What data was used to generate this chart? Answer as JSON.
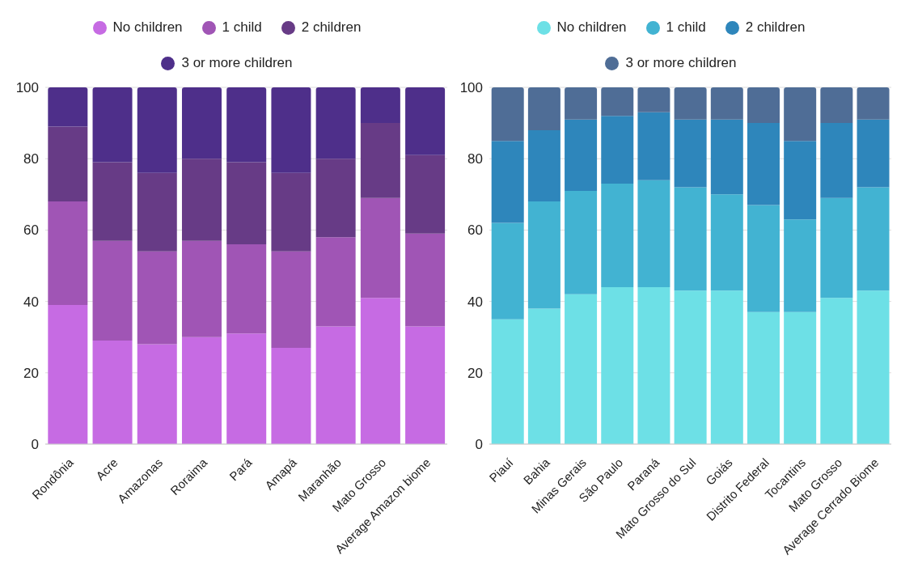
{
  "chart_data": [
    {
      "type": "bar",
      "stacked": true,
      "categories": [
        "Rondônia",
        "Acre",
        "Amazonas",
        "Roraima",
        "Pará",
        "Amapá",
        "Maranhão",
        "Mato Grosso",
        "Average Amazon biome"
      ],
      "ylim": [
        0,
        100
      ],
      "yticks": [
        0,
        20,
        40,
        60,
        80,
        100
      ],
      "grid": "y",
      "legend": "top",
      "series": [
        {
          "name": "No children",
          "color": "#c66be3",
          "values": [
            39,
            29,
            28,
            30,
            31,
            27,
            33,
            41,
            33
          ]
        },
        {
          "name": "1 child",
          "color": "#a055b5",
          "values": [
            29,
            28,
            26,
            27,
            25,
            27,
            25,
            28,
            26
          ]
        },
        {
          "name": "2 children",
          "color": "#673b86",
          "values": [
            21,
            22,
            22,
            23,
            23,
            22,
            22,
            21,
            22
          ]
        },
        {
          "name": "3 or more children",
          "color": "#4e2f8a",
          "values": [
            11,
            21,
            24,
            20,
            21,
            24,
            20,
            10,
            19
          ]
        }
      ]
    },
    {
      "type": "bar",
      "stacked": true,
      "categories": [
        "Piauí",
        "Bahia",
        "Minas Gerais",
        "São Paulo",
        "Paraná",
        "Mato Grosso do Sul",
        "Goiás",
        "Distrito Federal",
        "Tocantins",
        "Mato Grosso",
        "Average Cerrado Biome"
      ],
      "ylim": [
        0,
        100
      ],
      "yticks": [
        0,
        20,
        40,
        60,
        80,
        100
      ],
      "grid": "y",
      "legend": "top",
      "series": [
        {
          "name": "No children",
          "color": "#6de0e6",
          "values": [
            35,
            38,
            42,
            44,
            44,
            43,
            43,
            37,
            37,
            41,
            43
          ]
        },
        {
          "name": "1 child",
          "color": "#42b3d2",
          "values": [
            27,
            30,
            29,
            29,
            30,
            29,
            27,
            30,
            26,
            28,
            29
          ]
        },
        {
          "name": "2 children",
          "color": "#2e86bb",
          "values": [
            23,
            20,
            20,
            19,
            19,
            19,
            21,
            23,
            22,
            21,
            19
          ]
        },
        {
          "name": "3 or more children",
          "color": "#4f6d96",
          "values": [
            15,
            12,
            9,
            8,
            7,
            9,
            9,
            10,
            15,
            10,
            9
          ]
        }
      ]
    }
  ]
}
